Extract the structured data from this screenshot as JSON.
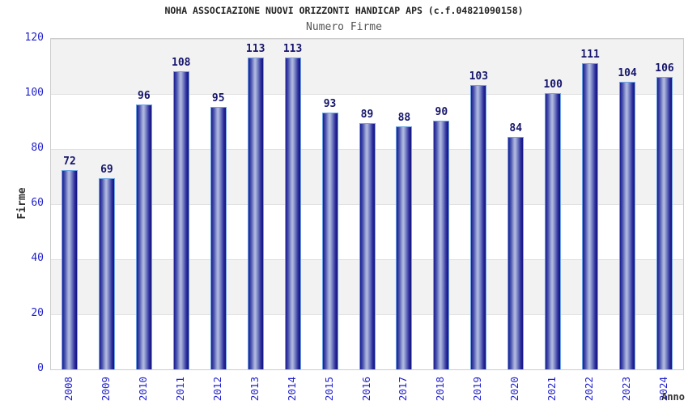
{
  "chart_data": {
    "type": "bar",
    "title": "NOHA ASSOCIAZIONE NUOVI ORIZZONTI HANDICAP APS (c.f.04821090158)",
    "subtitle": "Numero Firme",
    "xlabel": "Anno",
    "ylabel": "Firme",
    "categories": [
      "2008",
      "2009",
      "2010",
      "2011",
      "2012",
      "2013",
      "2014",
      "2015",
      "2016",
      "2017",
      "2018",
      "2019",
      "2020",
      "2021",
      "2022",
      "2023",
      "2024"
    ],
    "values": [
      72,
      69,
      96,
      108,
      95,
      113,
      113,
      93,
      89,
      88,
      90,
      103,
      84,
      100,
      111,
      104,
      106
    ],
    "ylim": [
      0,
      120
    ],
    "yticks": [
      0,
      20,
      40,
      60,
      80,
      100,
      120
    ],
    "grid": "alternating-horizontal-bands",
    "legend": "none",
    "colors": {
      "bar_edge_dark": "#10107e",
      "bar_mid": "#4a55ae",
      "bar_light": "#b0b8e0",
      "bar_border": "#6fa3e2",
      "value_label": "#15156b",
      "tick_label": "#2222cc",
      "axis_title": "#333333",
      "title_text": "#222222",
      "subtitle_text": "#555555",
      "band_gray": "#f2f2f2",
      "band_white": "#ffffff",
      "plot_border": "#cccccc"
    }
  }
}
